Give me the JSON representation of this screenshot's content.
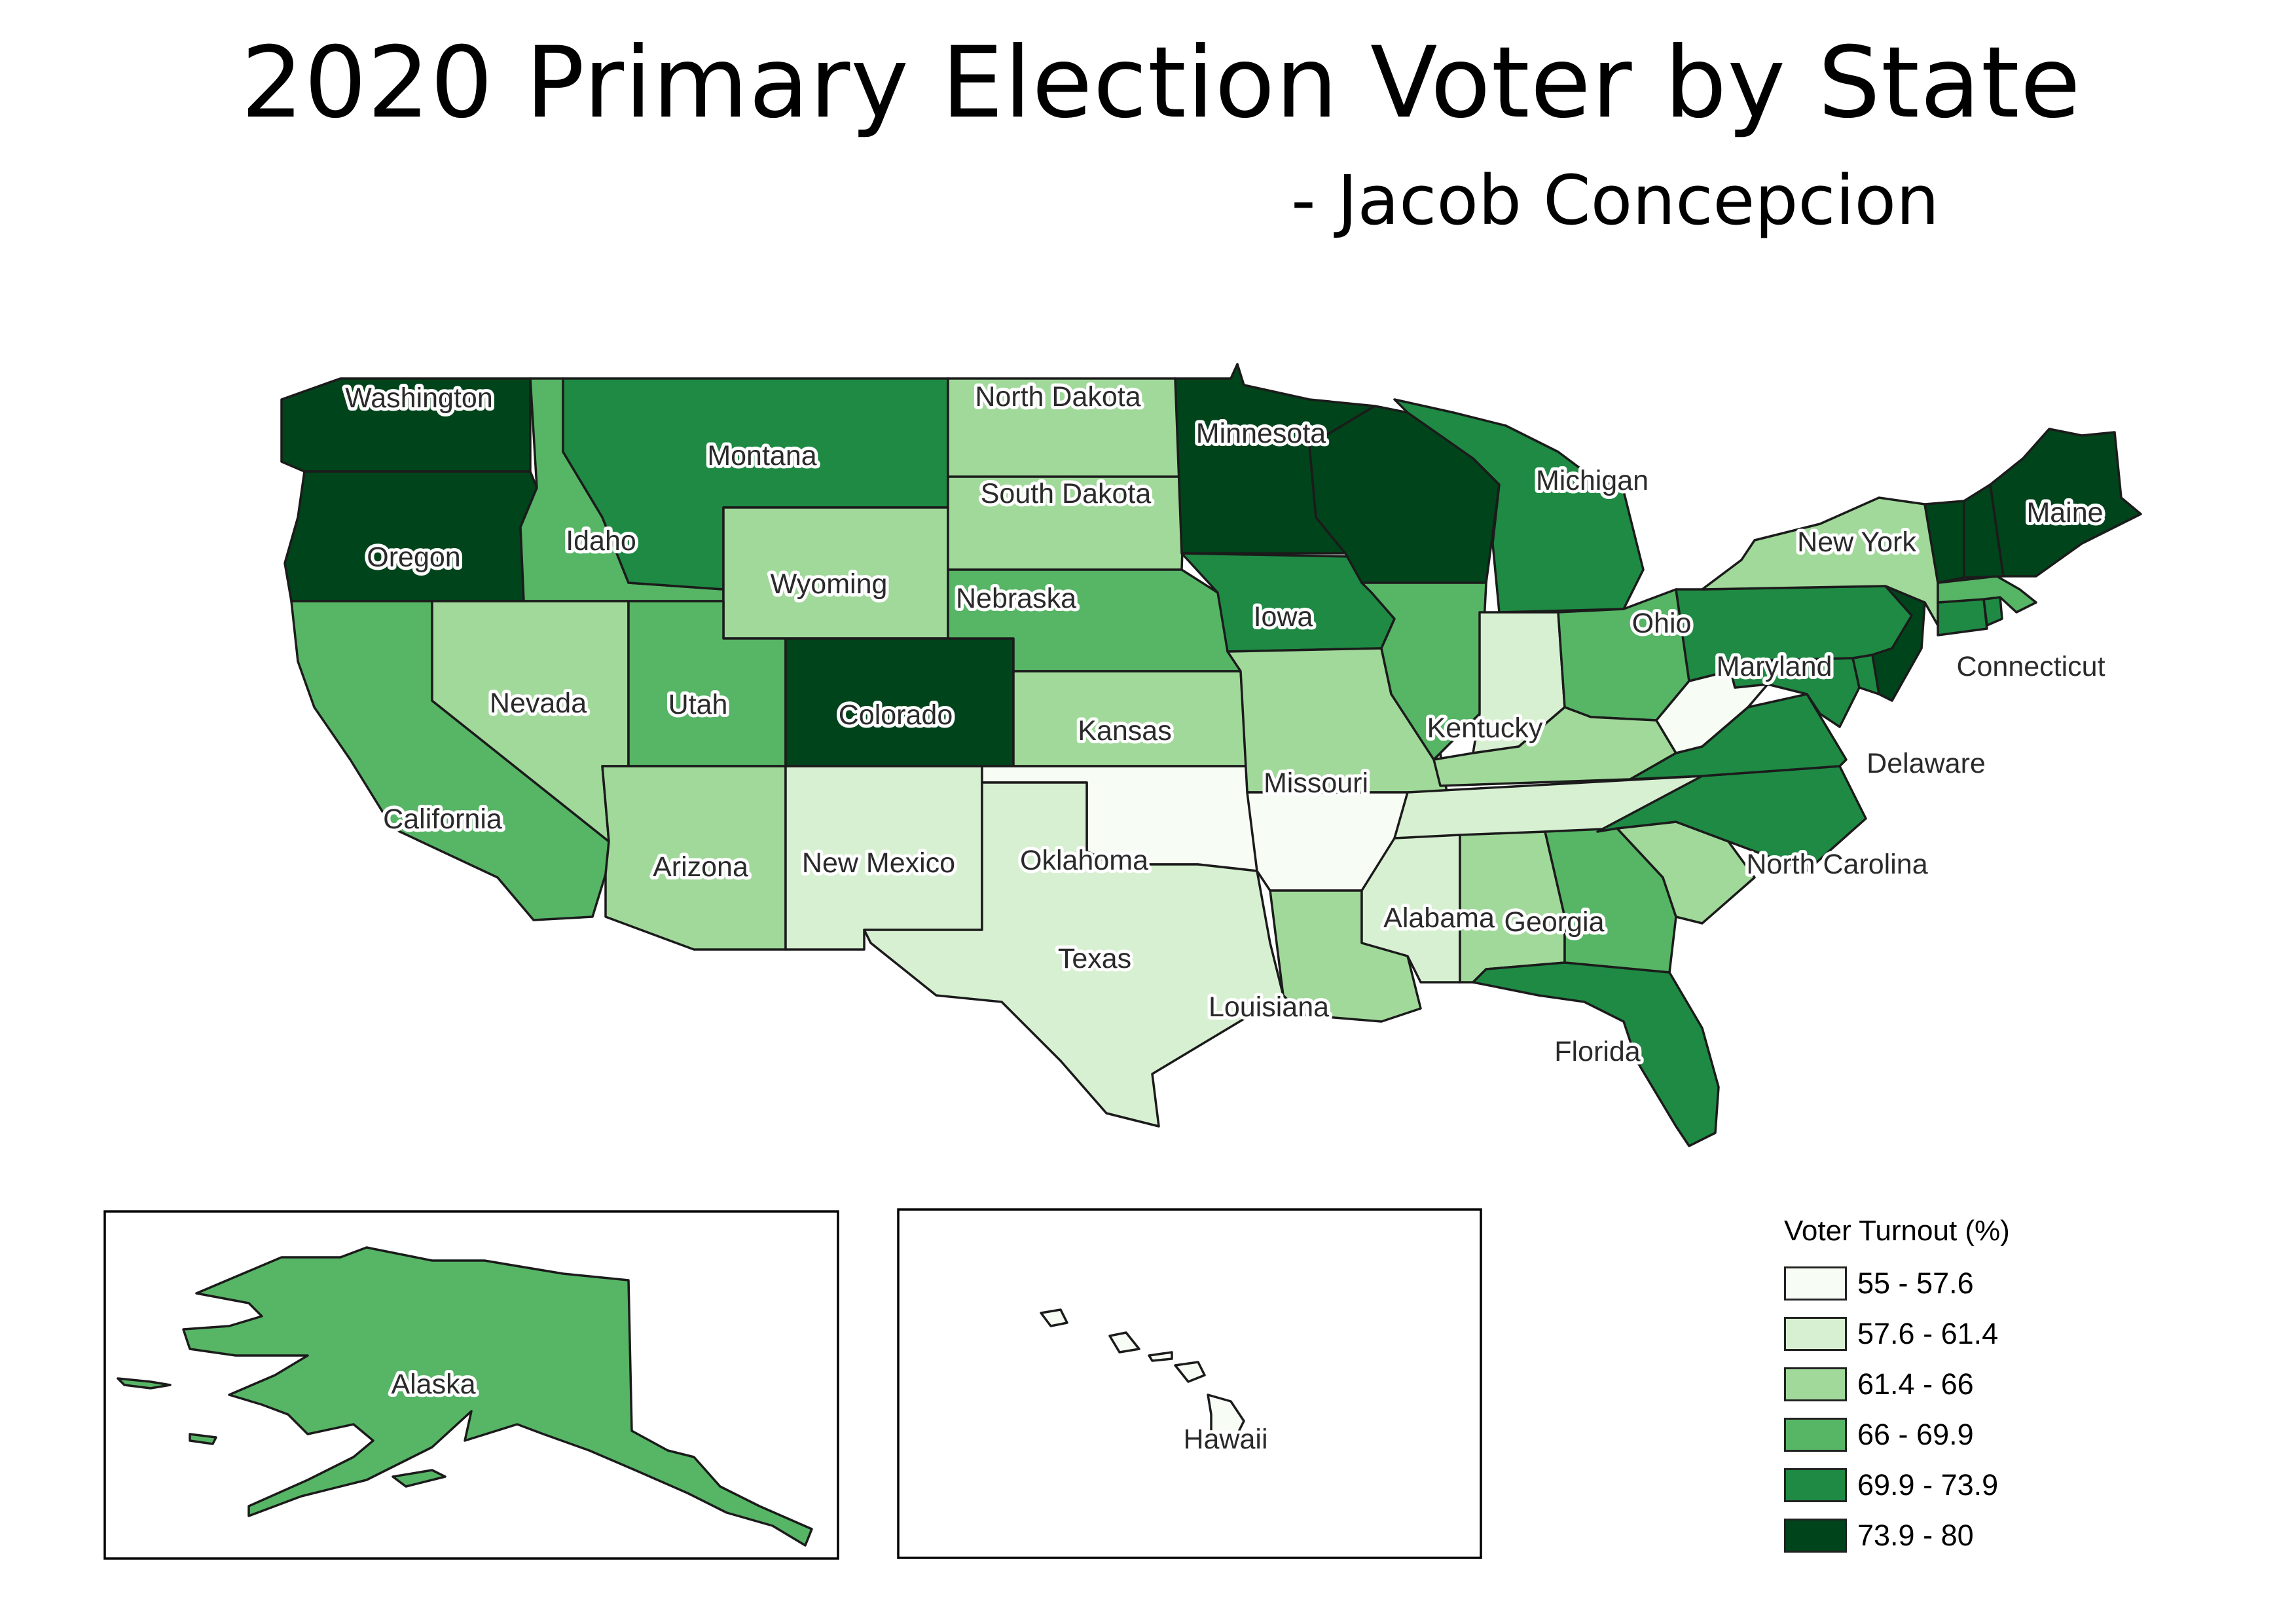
{
  "title": "2020 Primary Election Voter by State",
  "subtitle": "- Jacob Concepcion",
  "map": {
    "states": [
      {
        "name": "Washington",
        "bin": 5
      },
      {
        "name": "Oregon",
        "bin": 5
      },
      {
        "name": "California",
        "bin": 3
      },
      {
        "name": "Idaho",
        "bin": 3
      },
      {
        "name": "Nevada",
        "bin": 2
      },
      {
        "name": "Montana",
        "bin": 4
      },
      {
        "name": "Wyoming",
        "bin": 2
      },
      {
        "name": "Utah",
        "bin": 3
      },
      {
        "name": "Colorado",
        "bin": 5
      },
      {
        "name": "Arizona",
        "bin": 2
      },
      {
        "name": "New Mexico",
        "bin": 1
      },
      {
        "name": "North Dakota",
        "bin": 2
      },
      {
        "name": "South Dakota",
        "bin": 2
      },
      {
        "name": "Nebraska",
        "bin": 3
      },
      {
        "name": "Kansas",
        "bin": 2
      },
      {
        "name": "Oklahoma",
        "bin": 0
      },
      {
        "name": "Texas",
        "bin": 1
      },
      {
        "name": "Minnesota",
        "bin": 5
      },
      {
        "name": "Iowa",
        "bin": 4
      },
      {
        "name": "Missouri",
        "bin": 2
      },
      {
        "name": "Arkansas",
        "bin": 0
      },
      {
        "name": "Louisiana",
        "bin": 2
      },
      {
        "name": "Wisconsin",
        "bin": 5
      },
      {
        "name": "Illinois",
        "bin": 3
      },
      {
        "name": "Michigan",
        "bin": 4
      },
      {
        "name": "Indiana",
        "bin": 1
      },
      {
        "name": "Ohio",
        "bin": 3
      },
      {
        "name": "Kentucky",
        "bin": 2
      },
      {
        "name": "Tennessee",
        "bin": 1
      },
      {
        "name": "Mississippi",
        "bin": 1
      },
      {
        "name": "Alabama",
        "bin": 2
      },
      {
        "name": "Georgia",
        "bin": 3
      },
      {
        "name": "Florida",
        "bin": 4
      },
      {
        "name": "South Carolina",
        "bin": 2
      },
      {
        "name": "North Carolina",
        "bin": 4
      },
      {
        "name": "Virginia",
        "bin": 4
      },
      {
        "name": "West Virginia",
        "bin": 0
      },
      {
        "name": "Maryland",
        "bin": 4
      },
      {
        "name": "Delaware",
        "bin": 4
      },
      {
        "name": "Pennsylvania",
        "bin": 4
      },
      {
        "name": "New Jersey",
        "bin": 5
      },
      {
        "name": "New York",
        "bin": 2
      },
      {
        "name": "Connecticut",
        "bin": 4
      },
      {
        "name": "Rhode Island",
        "bin": 4
      },
      {
        "name": "Massachusetts",
        "bin": 3
      },
      {
        "name": "Vermont",
        "bin": 5
      },
      {
        "name": "New Hampshire",
        "bin": 5
      },
      {
        "name": "Maine",
        "bin": 5
      },
      {
        "name": "Alaska",
        "bin": 3
      },
      {
        "name": "Hawaii",
        "bin": 0
      }
    ],
    "labels": [
      "Washington",
      "Oregon",
      "California",
      "Idaho",
      "Nevada",
      "Montana",
      "Wyoming",
      "Utah",
      "Colorado",
      "Arizona",
      "New Mexico",
      "North Dakota",
      "South Dakota",
      "Nebraska",
      "Kansas",
      "Oklahoma",
      "Texas",
      "Minnesota",
      "Iowa",
      "Missouri",
      "Louisiana",
      "Michigan",
      "Kentucky",
      "Alabama",
      "Georgia",
      "Florida",
      "North Carolina",
      "Ohio",
      "Maryland",
      "Delaware",
      "New York",
      "Connecticut",
      "Maine",
      "Alaska",
      "Hawaii"
    ]
  },
  "legend": {
    "title": "Voter Turnout (%)",
    "bins": [
      {
        "label": "55 - 57.6",
        "color": "#f7fcf5"
      },
      {
        "label": "57.6 - 61.4",
        "color": "#d8f0d2"
      },
      {
        "label": "61.4 - 66",
        "color": "#a1d99b"
      },
      {
        "label": "66 - 69.9",
        "color": "#57b566"
      },
      {
        "label": "69.9 - 73.9",
        "color": "#1f8a44"
      },
      {
        "label": "73.9 - 80",
        "color": "#00441b"
      }
    ]
  }
}
